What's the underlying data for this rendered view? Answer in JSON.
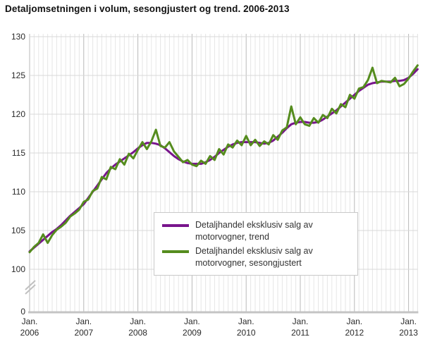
{
  "title": "Detaljomsetningen i volum, sesongjustert og trend. 2006-2013",
  "colors": {
    "trend": "#78148c",
    "seasonally_adjusted": "#558c1e",
    "grid_month": "#e6e6e6",
    "grid_year": "#b8b8b8",
    "grid_horizontal": "#d8d8d8",
    "axis_line": "#c4c4c4",
    "tick_text": "#2a2a2a"
  },
  "legend": {
    "items": [
      {
        "label": "Detaljhandel eksklusiv salg av motorvogner, trend",
        "series_index": 0
      },
      {
        "label": "Detaljhandel eksklusiv salg av motorvogner, sesongjustert",
        "series_index": 1
      }
    ]
  },
  "chart_data": {
    "type": "line",
    "title": "Detaljomsetningen i volum, sesongjustert og trend. 2006-2013",
    "xlabel": "",
    "ylabel": "",
    "x_start": "2006-01",
    "x_end": "2013-03",
    "months_total": 87,
    "x_tick_labels": [
      {
        "month": "Jan.",
        "year": "2006"
      },
      {
        "month": "Jan.",
        "year": "2007"
      },
      {
        "month": "Jan.",
        "year": "2008"
      },
      {
        "month": "Jan.",
        "year": "2009"
      },
      {
        "month": "Jan.",
        "year": "2010"
      },
      {
        "month": "Jan.",
        "year": "2011"
      },
      {
        "month": "Jan.",
        "year": "2012"
      },
      {
        "month": "Jan.",
        "year": "2013"
      }
    ],
    "y_ticks": [
      130,
      125,
      120,
      115,
      110,
      105,
      100
    ],
    "y_axis_zero_label": "0",
    "axis_break": true,
    "ylim_display": [
      100,
      130
    ],
    "grid": true,
    "legend_position": "inside-bottom-center",
    "series": [
      {
        "name": "Detaljhandel eksklusiv salg av motorvogner, trend",
        "color": "#78148c",
        "values": [
          102.3,
          102.8,
          103.3,
          103.8,
          104.3,
          104.8,
          105.2,
          105.7,
          106.3,
          106.9,
          107.4,
          107.9,
          108.4,
          109.2,
          110.0,
          110.8,
          111.6,
          112.4,
          113.0,
          113.5,
          113.9,
          114.3,
          114.7,
          115.1,
          115.6,
          116.0,
          116.3,
          116.3,
          116.2,
          116.0,
          115.6,
          115.1,
          114.6,
          114.2,
          113.9,
          113.7,
          113.6,
          113.6,
          113.6,
          113.8,
          114.1,
          114.5,
          115.0,
          115.4,
          115.8,
          116.1,
          116.3,
          116.4,
          116.4,
          116.4,
          116.4,
          116.3,
          116.2,
          116.3,
          116.6,
          117.1,
          117.6,
          118.2,
          118.7,
          118.9,
          119.0,
          119.0,
          118.9,
          118.9,
          119.0,
          119.3,
          119.7,
          120.1,
          120.5,
          121.0,
          121.5,
          122.0,
          122.5,
          123.0,
          123.4,
          123.8,
          124.0,
          124.1,
          124.2,
          124.2,
          124.2,
          124.3,
          124.3,
          124.4,
          124.7,
          125.2,
          125.8
        ]
      },
      {
        "name": "Detaljhandel eksklusiv salg av motorvogner, sesongjustert",
        "color": "#558c1e",
        "values": [
          102.2,
          102.9,
          103.4,
          104.5,
          103.4,
          104.4,
          105.1,
          105.5,
          106.0,
          106.8,
          107.2,
          107.7,
          108.7,
          109.0,
          110.1,
          110.4,
          111.9,
          111.6,
          113.2,
          112.9,
          114.2,
          113.5,
          114.9,
          114.3,
          115.4,
          116.4,
          115.5,
          116.5,
          118.0,
          115.9,
          115.7,
          116.4,
          115.2,
          114.5,
          113.8,
          114.1,
          113.5,
          113.3,
          114.0,
          113.6,
          114.6,
          114.1,
          115.5,
          114.8,
          116.1,
          115.7,
          116.6,
          116.0,
          117.2,
          116.0,
          116.7,
          115.9,
          116.5,
          116.1,
          117.3,
          116.7,
          117.9,
          118.3,
          121.0,
          118.7,
          119.6,
          118.7,
          118.5,
          119.5,
          118.9,
          119.9,
          119.5,
          120.7,
          120.1,
          121.3,
          120.9,
          122.5,
          122.0,
          123.3,
          123.5,
          124.4,
          126.0,
          124.0,
          124.3,
          124.2,
          124.1,
          124.7,
          123.6,
          123.9,
          124.6,
          125.5,
          126.3
        ]
      }
    ]
  }
}
